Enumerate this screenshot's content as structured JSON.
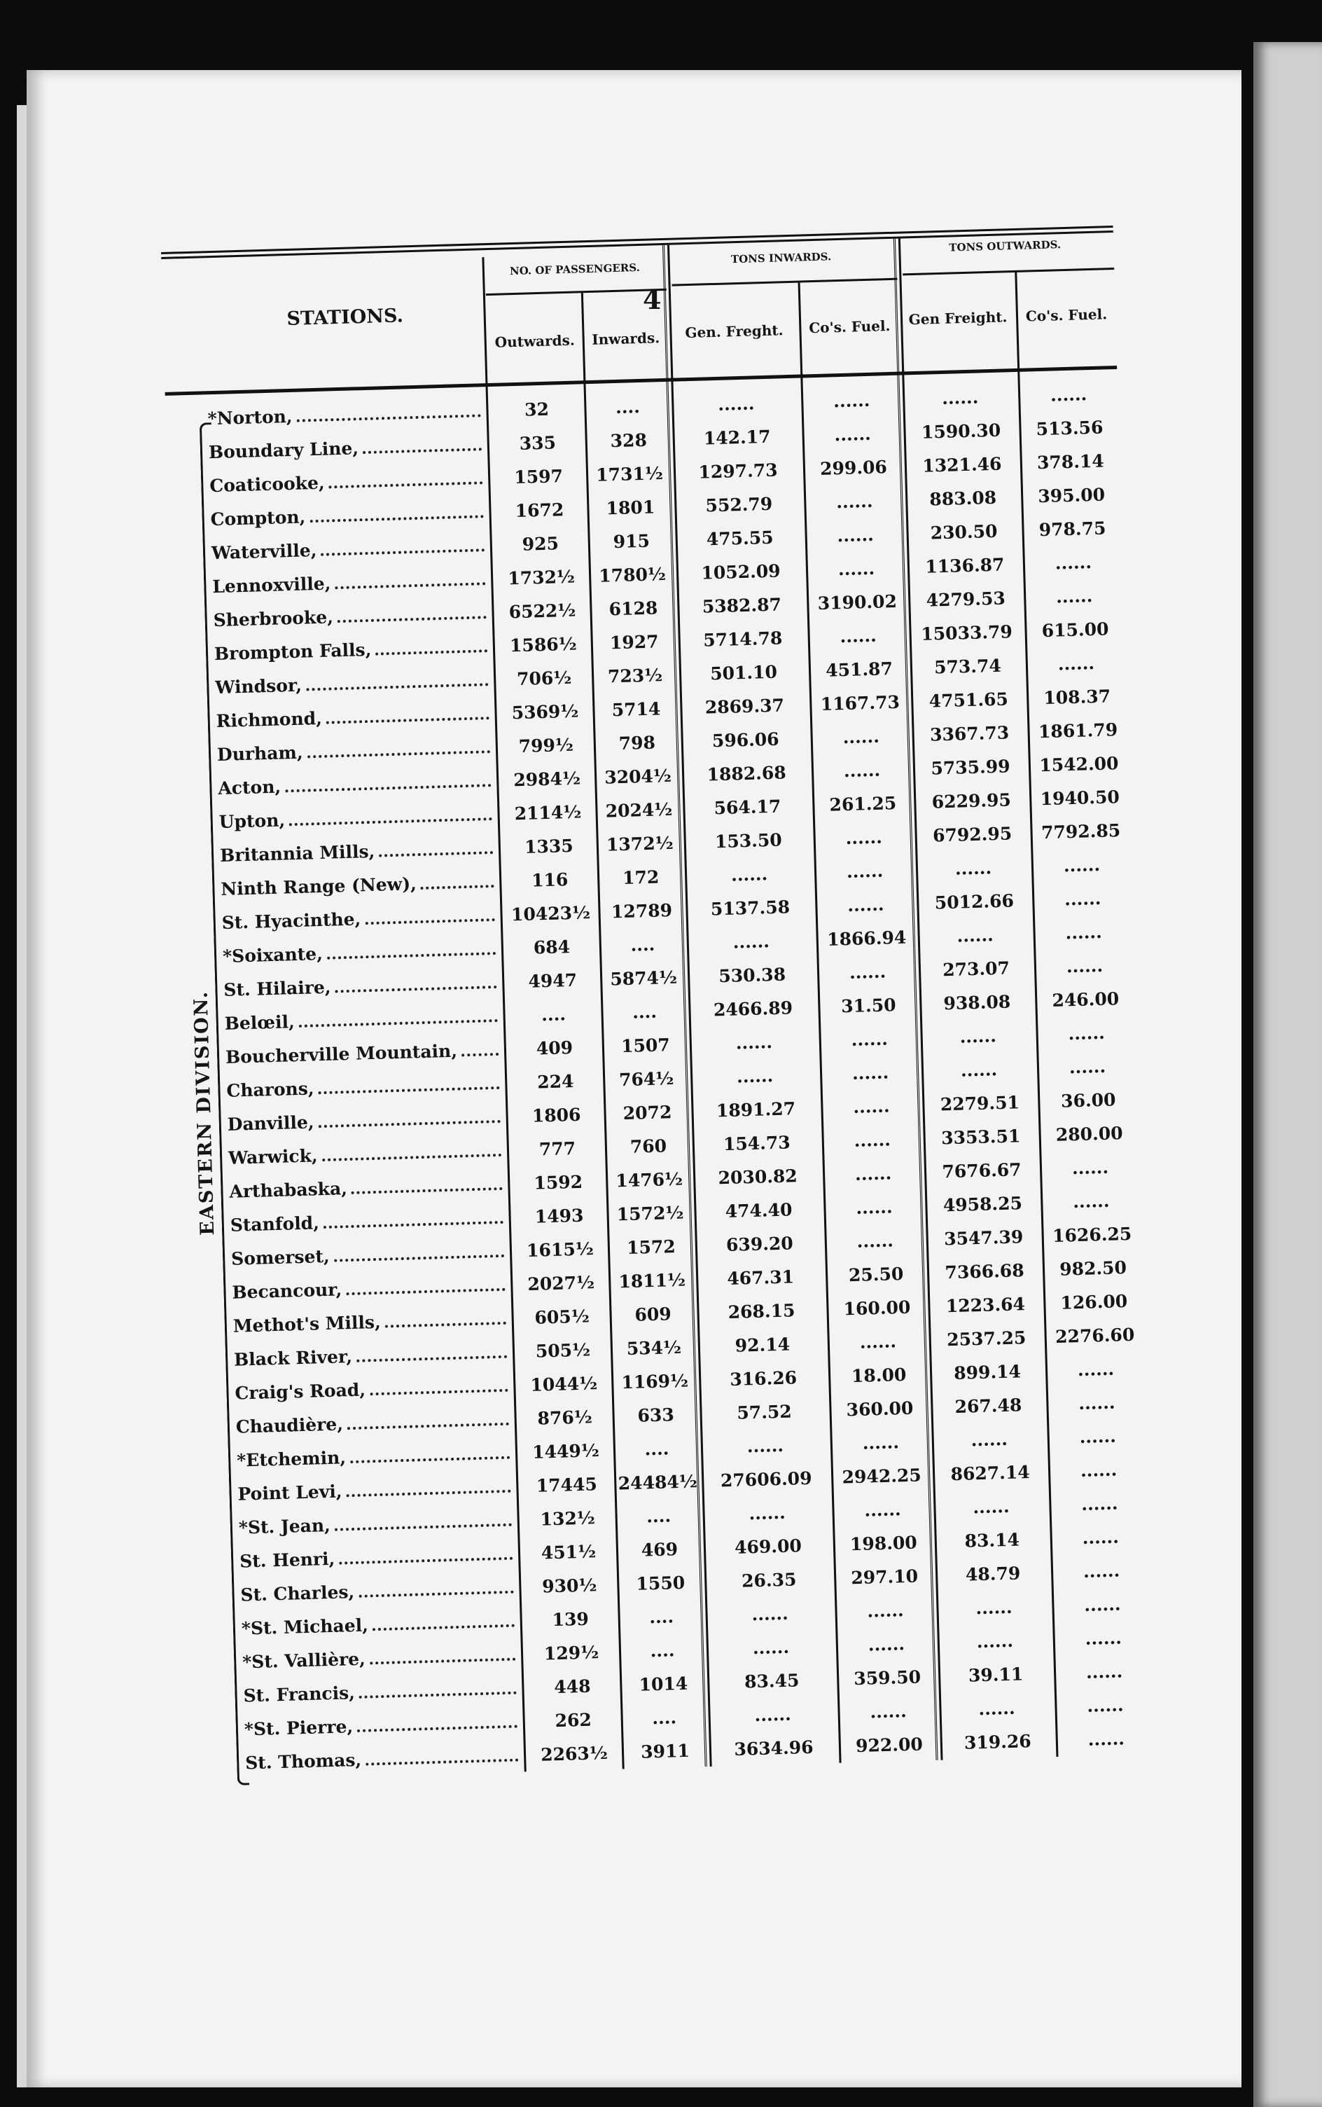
{
  "page": {
    "number": "4"
  },
  "header": {
    "stations": "STATIONS.",
    "passengers": "NO. OF PASSENGERS.",
    "tons_inwards": "TONS INWARDS.",
    "tons_outwards": "TONS OUTWARDS.",
    "outwards": "Outwards.",
    "inwards": "Inwards.",
    "gen_freight_in": "Gen. Freght.",
    "fuel_in": "Co's. Fuel.",
    "gen_freight_out": "Gen Freight.",
    "fuel_out": "Co's. Fuel."
  },
  "division_label": "EASTERN DIVISION.",
  "rows": [
    {
      "station": "*Norton,",
      "out": "32",
      "in": "....",
      "gen_in": "......",
      "fuel_in": "......",
      "gen_out": "......",
      "fuel_out": "......"
    },
    {
      "station": "Boundary Line,",
      "out": "335",
      "in": "328",
      "gen_in": "142.17",
      "fuel_in": "......",
      "gen_out": "1590.30",
      "fuel_out": "513.56"
    },
    {
      "station": "Coaticooke,",
      "out": "1597",
      "in": "1731½",
      "gen_in": "1297.73",
      "fuel_in": "299.06",
      "gen_out": "1321.46",
      "fuel_out": "378.14"
    },
    {
      "station": "Compton,",
      "out": "1672",
      "in": "1801",
      "gen_in": "552.79",
      "fuel_in": "......",
      "gen_out": "883.08",
      "fuel_out": "395.00"
    },
    {
      "station": "Waterville,",
      "out": "925",
      "in": "915",
      "gen_in": "475.55",
      "fuel_in": "......",
      "gen_out": "230.50",
      "fuel_out": "978.75"
    },
    {
      "station": "Lennoxville,",
      "out": "1732½",
      "in": "1780½",
      "gen_in": "1052.09",
      "fuel_in": "......",
      "gen_out": "1136.87",
      "fuel_out": "......"
    },
    {
      "station": "Sherbrooke,",
      "out": "6522½",
      "in": "6128",
      "gen_in": "5382.87",
      "fuel_in": "3190.02",
      "gen_out": "4279.53",
      "fuel_out": "......"
    },
    {
      "station": "Brompton Falls,",
      "out": "1586½",
      "in": "1927",
      "gen_in": "5714.78",
      "fuel_in": "......",
      "gen_out": "15033.79",
      "fuel_out": "615.00"
    },
    {
      "station": "Windsor,",
      "out": "706½",
      "in": "723½",
      "gen_in": "501.10",
      "fuel_in": "451.87",
      "gen_out": "573.74",
      "fuel_out": "......"
    },
    {
      "station": "Richmond,",
      "out": "5369½",
      "in": "5714",
      "gen_in": "2869.37",
      "fuel_in": "1167.73",
      "gen_out": "4751.65",
      "fuel_out": "108.37"
    },
    {
      "station": "Durham,",
      "out": "799½",
      "in": "798",
      "gen_in": "596.06",
      "fuel_in": "......",
      "gen_out": "3367.73",
      "fuel_out": "1861.79"
    },
    {
      "station": "Acton,",
      "out": "2984½",
      "in": "3204½",
      "gen_in": "1882.68",
      "fuel_in": "......",
      "gen_out": "5735.99",
      "fuel_out": "1542.00"
    },
    {
      "station": "Upton,",
      "out": "2114½",
      "in": "2024½",
      "gen_in": "564.17",
      "fuel_in": "261.25",
      "gen_out": "6229.95",
      "fuel_out": "1940.50"
    },
    {
      "station": "Britannia Mills,",
      "out": "1335",
      "in": "1372½",
      "gen_in": "153.50",
      "fuel_in": "......",
      "gen_out": "6792.95",
      "fuel_out": "7792.85"
    },
    {
      "station": "Ninth Range (New),",
      "out": "116",
      "in": "172",
      "gen_in": "......",
      "fuel_in": "......",
      "gen_out": "......",
      "fuel_out": "......"
    },
    {
      "station": "St. Hyacinthe,",
      "out": "10423½",
      "in": "12789",
      "gen_in": "5137.58",
      "fuel_in": "......",
      "gen_out": "5012.66",
      "fuel_out": "......"
    },
    {
      "station": "*Soixante,",
      "out": "684",
      "in": "....",
      "gen_in": "......",
      "fuel_in": "1866.94",
      "gen_out": "......",
      "fuel_out": "......"
    },
    {
      "station": "St. Hilaire,",
      "out": "4947",
      "in": "5874½",
      "gen_in": "530.38",
      "fuel_in": "......",
      "gen_out": "273.07",
      "fuel_out": "......"
    },
    {
      "station": "Belœil,",
      "out": "....",
      "in": "....",
      "gen_in": "2466.89",
      "fuel_in": "31.50",
      "gen_out": "938.08",
      "fuel_out": "246.00"
    },
    {
      "station": "Boucherville Mountain,",
      "out": "409",
      "in": "1507",
      "gen_in": "......",
      "fuel_in": "......",
      "gen_out": "......",
      "fuel_out": "......"
    },
    {
      "station": "Charons,",
      "out": "224",
      "in": "764½",
      "gen_in": "......",
      "fuel_in": "......",
      "gen_out": "......",
      "fuel_out": "......"
    },
    {
      "station": "Danville,",
      "out": "1806",
      "in": "2072",
      "gen_in": "1891.27",
      "fuel_in": "......",
      "gen_out": "2279.51",
      "fuel_out": "36.00"
    },
    {
      "station": "Warwick,",
      "out": "777",
      "in": "760",
      "gen_in": "154.73",
      "fuel_in": "......",
      "gen_out": "3353.51",
      "fuel_out": "280.00"
    },
    {
      "station": "Arthabaska,",
      "out": "1592",
      "in": "1476½",
      "gen_in": "2030.82",
      "fuel_in": "......",
      "gen_out": "7676.67",
      "fuel_out": "......"
    },
    {
      "station": "Stanfold,",
      "out": "1493",
      "in": "1572½",
      "gen_in": "474.40",
      "fuel_in": "......",
      "gen_out": "4958.25",
      "fuel_out": "......"
    },
    {
      "station": "Somerset,",
      "out": "1615½",
      "in": "1572",
      "gen_in": "639.20",
      "fuel_in": "......",
      "gen_out": "3547.39",
      "fuel_out": "1626.25"
    },
    {
      "station": "Becancour,",
      "out": "2027½",
      "in": "1811½",
      "gen_in": "467.31",
      "fuel_in": "25.50",
      "gen_out": "7366.68",
      "fuel_out": "982.50"
    },
    {
      "station": "Methot's Mills,",
      "out": "605½",
      "in": "609",
      "gen_in": "268.15",
      "fuel_in": "160.00",
      "gen_out": "1223.64",
      "fuel_out": "126.00"
    },
    {
      "station": "Black River,",
      "out": "505½",
      "in": "534½",
      "gen_in": "92.14",
      "fuel_in": "......",
      "gen_out": "2537.25",
      "fuel_out": "2276.60"
    },
    {
      "station": "Craig's Road,",
      "out": "1044½",
      "in": "1169½",
      "gen_in": "316.26",
      "fuel_in": "18.00",
      "gen_out": "899.14",
      "fuel_out": "......"
    },
    {
      "station": "Chaudière,",
      "out": "876½",
      "in": "633",
      "gen_in": "57.52",
      "fuel_in": "360.00",
      "gen_out": "267.48",
      "fuel_out": "......"
    },
    {
      "station": "*Etchemin,",
      "out": "1449½",
      "in": "....",
      "gen_in": "......",
      "fuel_in": "......",
      "gen_out": "......",
      "fuel_out": "......"
    },
    {
      "station": "Point Levi,",
      "out": "17445",
      "in": "24484½",
      "gen_in": "27606.09",
      "fuel_in": "2942.25",
      "gen_out": "8627.14",
      "fuel_out": "......"
    },
    {
      "station": "*St. Jean,",
      "out": "132½",
      "in": "....",
      "gen_in": "......",
      "fuel_in": "......",
      "gen_out": "......",
      "fuel_out": "......"
    },
    {
      "station": "St. Henri,",
      "out": "451½",
      "in": "469",
      "gen_in": "469.00",
      "fuel_in": "198.00",
      "gen_out": "83.14",
      "fuel_out": "......"
    },
    {
      "station": "St. Charles,",
      "out": "930½",
      "in": "1550",
      "gen_in": "26.35",
      "fuel_in": "297.10",
      "gen_out": "48.79",
      "fuel_out": "......"
    },
    {
      "station": "*St. Michael,",
      "out": "139",
      "in": "....",
      "gen_in": "......",
      "fuel_in": "......",
      "gen_out": "......",
      "fuel_out": "......"
    },
    {
      "station": "*St. Vallière,",
      "out": "129½",
      "in": "....",
      "gen_in": "......",
      "fuel_in": "......",
      "gen_out": "......",
      "fuel_out": "......"
    },
    {
      "station": "St. Francis,",
      "out": "448",
      "in": "1014",
      "gen_in": "83.45",
      "fuel_in": "359.50",
      "gen_out": "39.11",
      "fuel_out": "......"
    },
    {
      "station": "*St. Pierre,",
      "out": "262",
      "in": "....",
      "gen_in": "......",
      "fuel_in": "......",
      "gen_out": "......",
      "fuel_out": "......"
    },
    {
      "station": "St. Thomas,",
      "out": "2263½",
      "in": "3911",
      "gen_in": "3634.96",
      "fuel_in": "922.00",
      "gen_out": "319.26",
      "fuel_out": "......"
    }
  ]
}
